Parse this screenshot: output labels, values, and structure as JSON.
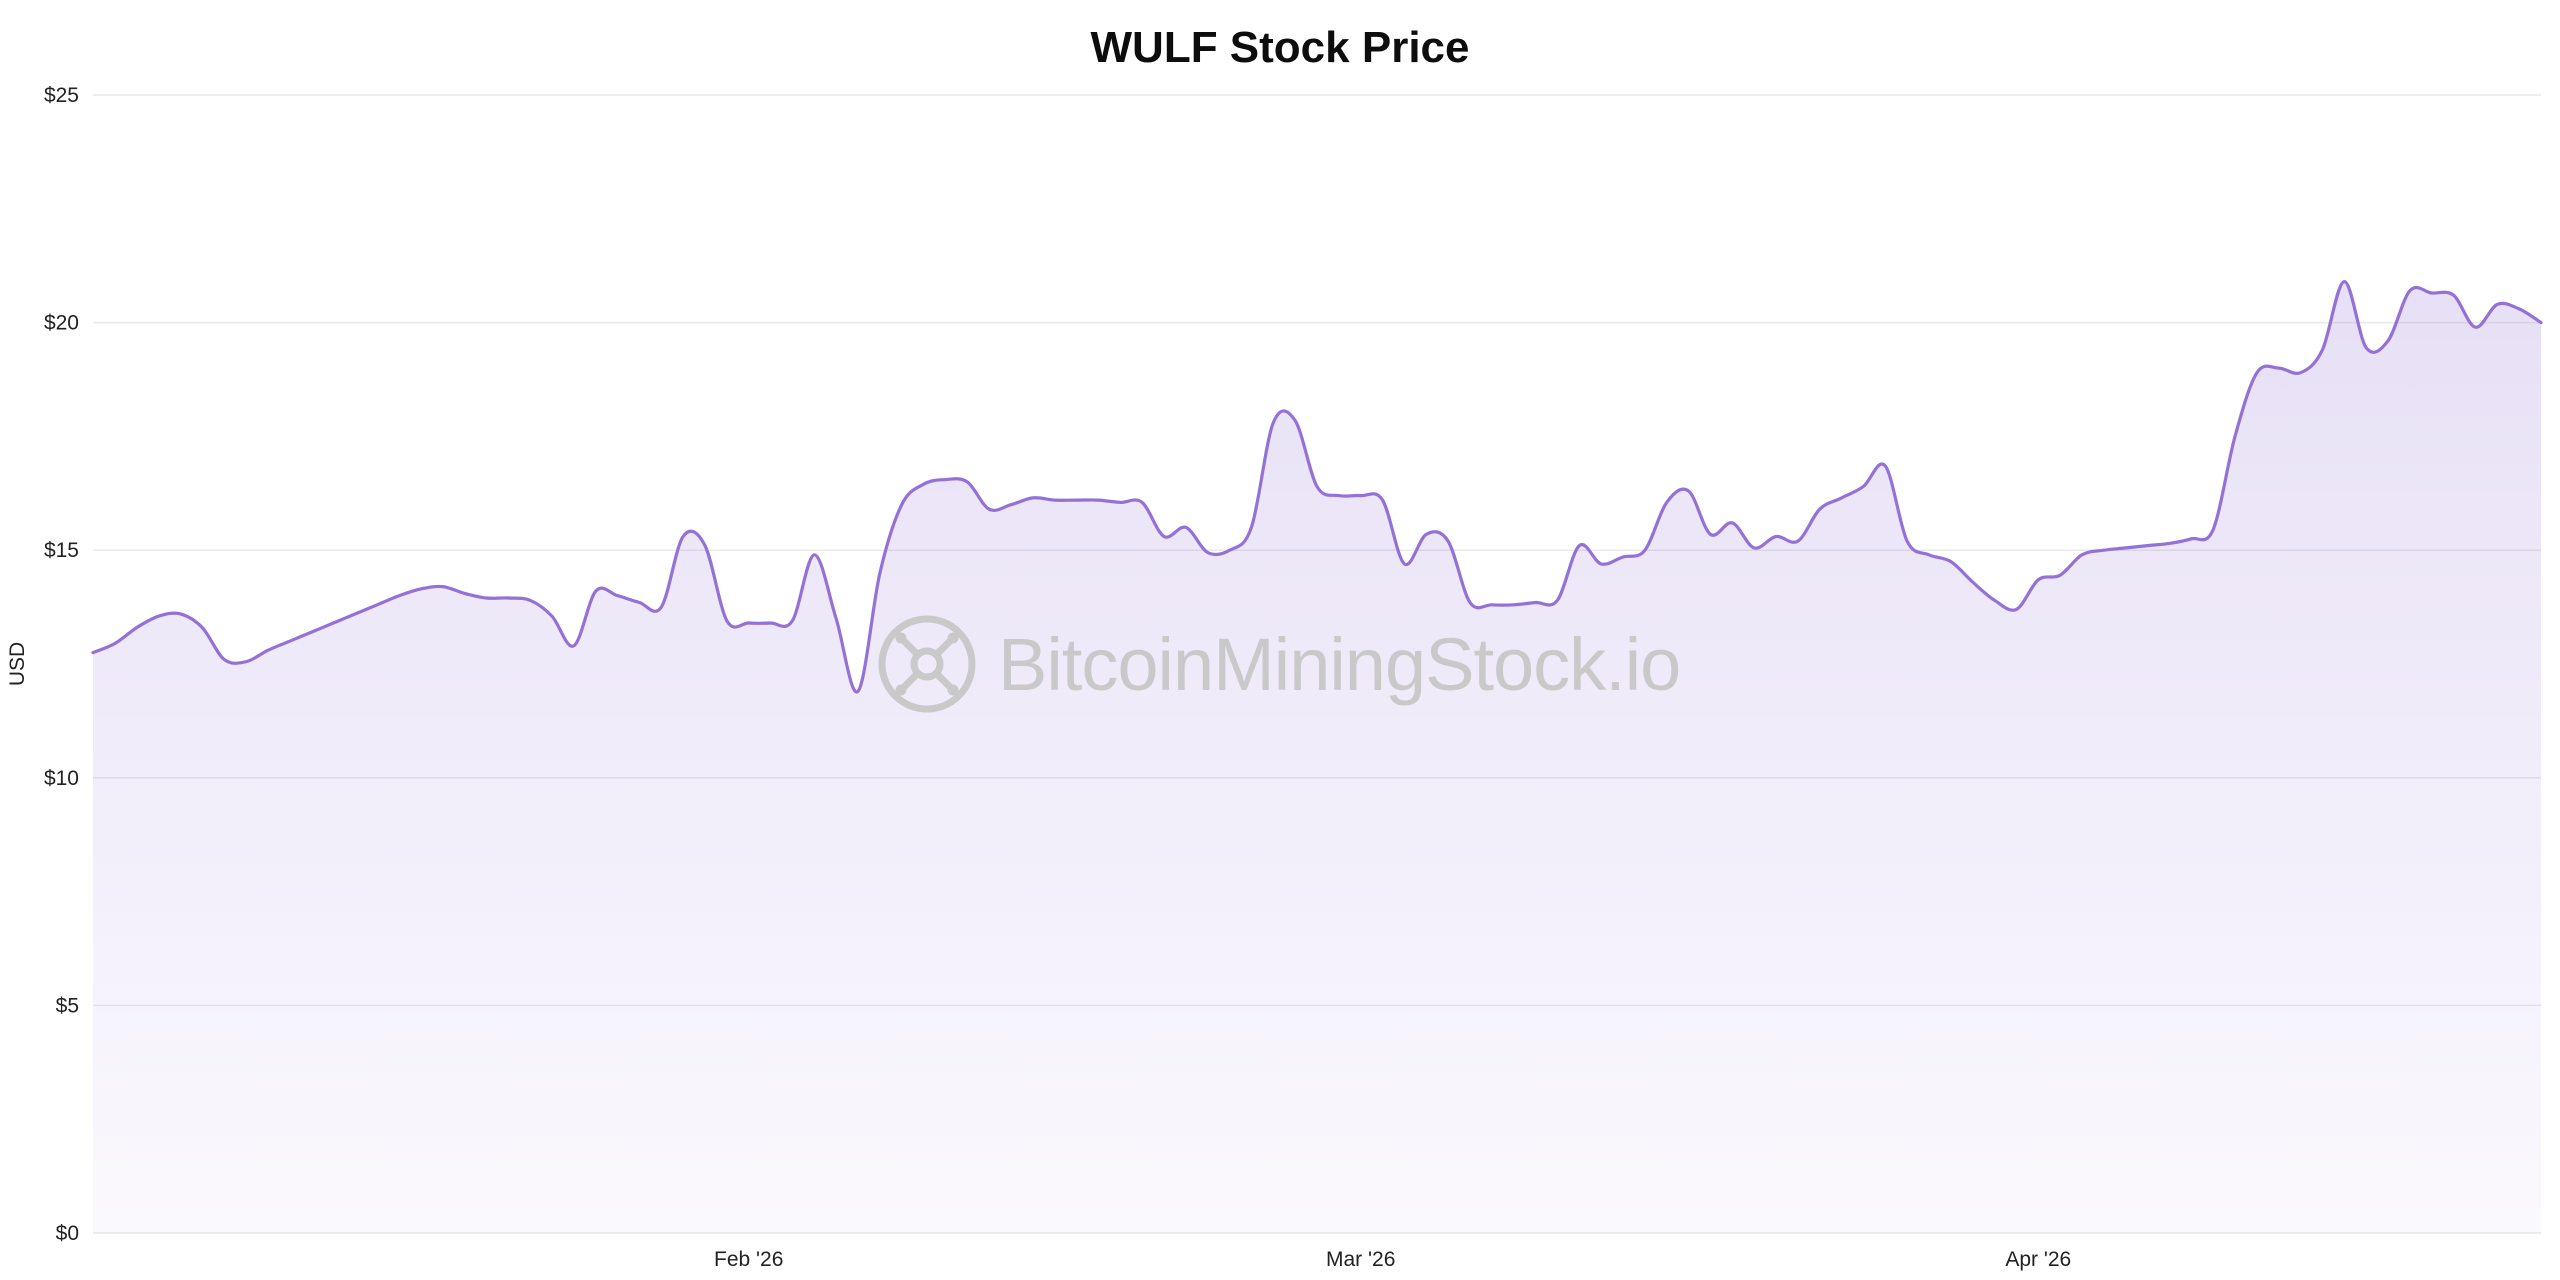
{
  "title": "WULF Stock Price",
  "watermark": {
    "icon": "mining-fan-icon",
    "text": "BitcoinMiningStock.io",
    "color": "#c9c9c9"
  },
  "colors": {
    "line": "#9371d6",
    "fill": "#9371d6",
    "fill_top_opacity": 0.22,
    "fill_bottom_opacity": 0.04,
    "grid": "#e9e9e9",
    "tick_text": "#222222",
    "title_text": "#0d0d0d"
  },
  "chart_data": {
    "type": "area",
    "title": "WULF Stock Price",
    "xlabel": "",
    "ylabel": "USD",
    "ylim": [
      0,
      25
    ],
    "grid": true,
    "legend": "none",
    "y_ticks": [
      "$0",
      "$5",
      "$10",
      "$15",
      "$20",
      "$25"
    ],
    "y_tick_values": [
      0,
      5,
      10,
      15,
      20,
      25
    ],
    "x_ticks": [
      {
        "label": "Feb '26",
        "index": 30
      },
      {
        "label": "Mar '26",
        "index": 58
      },
      {
        "label": "Apr '26",
        "index": 89
      }
    ],
    "x_start": "2026-01-02",
    "x_end": "2026-04-24",
    "frequency": "daily",
    "series": [
      {
        "name": "WULF",
        "values": [
          12.75,
          12.95,
          13.3,
          13.55,
          13.6,
          13.3,
          12.6,
          12.55,
          12.8,
          13.0,
          13.2,
          13.4,
          13.6,
          13.8,
          14.0,
          14.15,
          14.2,
          14.05,
          13.95,
          13.95,
          13.9,
          13.55,
          12.9,
          14.1,
          14.0,
          13.85,
          13.75,
          15.3,
          15.1,
          13.45,
          13.4,
          13.4,
          13.45,
          14.9,
          13.5,
          11.9,
          14.5,
          16.0,
          16.45,
          16.55,
          16.5,
          15.9,
          16.0,
          16.15,
          16.1,
          16.1,
          16.1,
          16.05,
          16.05,
          15.3,
          15.5,
          14.95,
          15.0,
          15.5,
          17.8,
          17.85,
          16.4,
          16.2,
          16.2,
          16.1,
          14.7,
          15.35,
          15.2,
          13.85,
          13.8,
          13.8,
          13.85,
          13.9,
          15.1,
          14.7,
          14.85,
          15.0,
          16.05,
          16.3,
          15.35,
          15.6,
          15.05,
          15.3,
          15.2,
          15.9,
          16.15,
          16.4,
          16.85,
          15.2,
          14.9,
          14.75,
          14.3,
          13.9,
          13.7,
          14.35,
          14.45,
          14.9,
          15.0,
          15.05,
          15.1,
          15.15,
          15.25,
          15.45,
          17.5,
          18.9,
          19.0,
          18.9,
          19.4,
          20.9,
          19.45,
          19.6,
          20.7,
          20.65,
          20.6,
          19.9,
          20.4,
          20.3,
          20.0
        ]
      }
    ]
  }
}
